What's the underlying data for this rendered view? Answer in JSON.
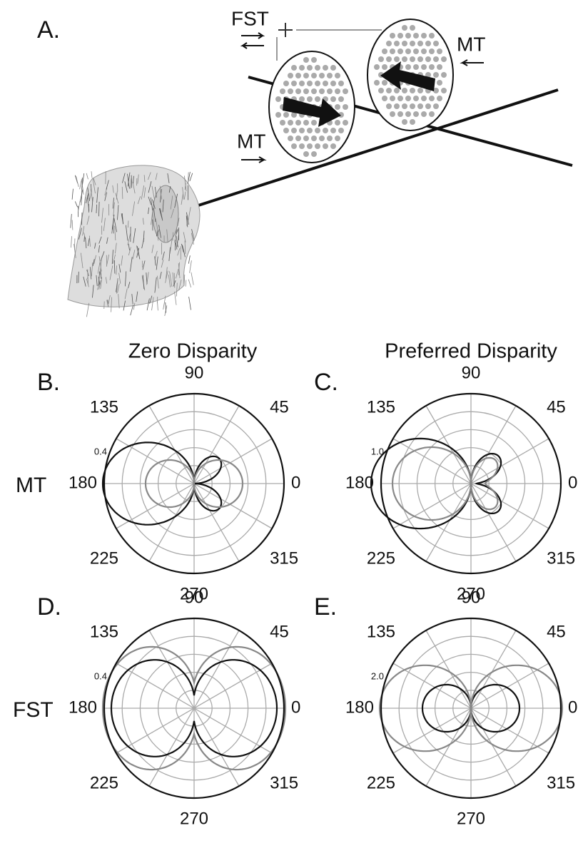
{
  "panel_a": {
    "label": "A.",
    "fst": "FST",
    "mt_near": "MT",
    "mt_far": "MT"
  },
  "column_headers": [
    "Zero Disparity",
    "Preferred Disparity"
  ],
  "row_labels": [
    "MT",
    "FST"
  ],
  "panels": [
    {
      "label": "B.",
      "scale": "0.4",
      "angles": [
        "0",
        "45",
        "90",
        "135",
        "180",
        "225",
        "270",
        "315"
      ]
    },
    {
      "label": "C.",
      "scale": "1.0",
      "angles": [
        "0",
        "45",
        "90",
        "135",
        "180",
        "225",
        "270",
        "315"
      ]
    },
    {
      "label": "D.",
      "scale": "0.4",
      "angles": [
        "0",
        "45",
        "90",
        "135",
        "180",
        "225",
        "270",
        "315"
      ]
    },
    {
      "label": "E.",
      "scale": "2.0",
      "angles": [
        "0",
        "45",
        "90",
        "135",
        "180",
        "225",
        "270",
        "315"
      ]
    }
  ]
}
